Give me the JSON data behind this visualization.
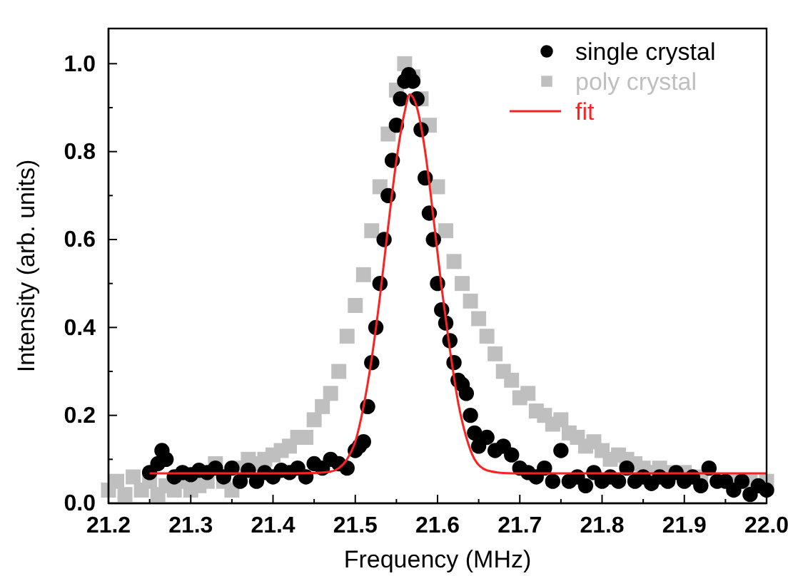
{
  "chart_data": {
    "type": "scatter",
    "xlabel": "Frequency (MHz)",
    "ylabel": "Intensity (arb. units)",
    "xlim": [
      21.2,
      22.0
    ],
    "ylim": [
      0,
      1.08
    ],
    "xticks": [
      21.2,
      {
        "value": 21.25,
        "label": null
      },
      21.3,
      {
        "value": 21.35,
        "label": null
      },
      21.4,
      {
        "value": 21.45,
        "label": null
      },
      21.5,
      {
        "value": 21.55,
        "label": null
      },
      21.6,
      {
        "value": 21.65,
        "label": null
      },
      21.7,
      {
        "value": 21.75,
        "label": null
      },
      21.8,
      {
        "value": 21.85,
        "label": null
      },
      21.9,
      {
        "value": 21.95,
        "label": null
      },
      {
        "value": 22,
        "label": "22.0"
      }
    ],
    "yticks": [
      {
        "value": 0,
        "label": "0.0"
      },
      {
        "value": 0.1,
        "label": null
      },
      0.2,
      {
        "value": 0.3,
        "label": null
      },
      0.4,
      {
        "value": 0.5,
        "label": null
      },
      0.6,
      {
        "value": 0.7,
        "label": null
      },
      0.8,
      {
        "value": 0.9,
        "label": null
      },
      {
        "value": 1,
        "label": "1.0"
      }
    ],
    "legend": "top right",
    "grid": false,
    "series": [
      {
        "name": "poly crystal",
        "marker": "square",
        "color": "#bfbfbf",
        "x": [
          21.2,
          21.21,
          21.22,
          21.23,
          21.24,
          21.25,
          21.26,
          21.27,
          21.28,
          21.29,
          21.3,
          21.31,
          21.32,
          21.33,
          21.34,
          21.35,
          21.36,
          21.37,
          21.38,
          21.39,
          21.4,
          21.41,
          21.42,
          21.43,
          21.44,
          21.45,
          21.46,
          21.47,
          21.48,
          21.49,
          21.5,
          21.51,
          21.52,
          21.53,
          21.54,
          21.55,
          21.56,
          21.57,
          21.58,
          21.59,
          21.6,
          21.61,
          21.62,
          21.63,
          21.64,
          21.65,
          21.66,
          21.67,
          21.68,
          21.69,
          21.7,
          21.71,
          21.72,
          21.73,
          21.74,
          21.75,
          21.76,
          21.77,
          21.78,
          21.79,
          21.8,
          21.81,
          21.82,
          21.83,
          21.84,
          21.85,
          21.86,
          21.87,
          21.88,
          21.9,
          21.92,
          21.94,
          21.96,
          21.98,
          22.0
        ],
        "values": [
          0.03,
          0.05,
          0.02,
          0.06,
          0.03,
          0.05,
          0.02,
          0.04,
          0.03,
          0.05,
          0.03,
          0.04,
          0.05,
          0.09,
          0.05,
          0.03,
          0.08,
          0.1,
          0.09,
          0.1,
          0.11,
          0.12,
          0.13,
          0.15,
          0.15,
          0.19,
          0.22,
          0.25,
          0.3,
          0.38,
          0.45,
          0.52,
          0.62,
          0.72,
          0.84,
          0.94,
          1.0,
          0.97,
          0.92,
          0.86,
          0.72,
          0.62,
          0.55,
          0.5,
          0.46,
          0.42,
          0.38,
          0.34,
          0.3,
          0.28,
          0.24,
          0.25,
          0.21,
          0.2,
          0.18,
          0.19,
          0.16,
          0.15,
          0.13,
          0.14,
          0.12,
          0.1,
          0.11,
          0.1,
          0.09,
          0.08,
          0.07,
          0.08,
          0.07,
          0.07,
          0.06,
          null,
          0.05,
          0.05,
          0.05
        ]
      },
      {
        "name": "single crystal",
        "marker": "circle",
        "color": "#000000",
        "x": [
          21.25,
          21.26,
          21.265,
          21.27,
          21.28,
          21.29,
          21.3,
          21.31,
          21.32,
          21.33,
          21.34,
          21.35,
          21.36,
          21.37,
          21.38,
          21.39,
          21.4,
          21.41,
          21.42,
          21.43,
          21.44,
          21.45,
          21.46,
          21.47,
          21.48,
          21.49,
          21.5,
          21.505,
          21.51,
          21.515,
          21.52,
          21.525,
          21.53,
          21.535,
          21.54,
          21.545,
          21.55,
          21.555,
          21.56,
          21.565,
          21.57,
          21.575,
          21.58,
          21.585,
          21.59,
          21.595,
          21.6,
          21.605,
          21.61,
          21.615,
          21.62,
          21.625,
          21.63,
          21.635,
          21.64,
          21.645,
          21.65,
          21.66,
          21.67,
          21.68,
          21.69,
          21.7,
          21.71,
          21.72,
          21.73,
          21.74,
          21.75,
          21.76,
          21.77,
          21.78,
          21.79,
          21.8,
          21.81,
          21.82,
          21.83,
          21.84,
          21.85,
          21.86,
          21.87,
          21.88,
          21.89,
          21.9,
          21.91,
          21.92,
          21.93,
          21.94,
          21.95,
          21.96,
          21.97,
          21.98,
          21.99,
          22.0
        ],
        "values": [
          0.07,
          0.09,
          0.12,
          0.1,
          0.06,
          0.07,
          0.065,
          0.075,
          0.07,
          0.08,
          0.06,
          0.08,
          0.05,
          0.075,
          0.05,
          0.07,
          0.06,
          0.075,
          0.07,
          0.08,
          0.06,
          0.09,
          0.08,
          0.1,
          0.09,
          0.08,
          0.12,
          0.13,
          0.14,
          0.22,
          0.32,
          0.4,
          0.5,
          0.6,
          0.7,
          0.78,
          0.86,
          0.92,
          0.96,
          0.975,
          0.96,
          0.92,
          0.85,
          0.74,
          0.66,
          0.6,
          0.5,
          0.44,
          0.41,
          0.37,
          0.32,
          0.28,
          0.27,
          0.25,
          0.2,
          0.16,
          0.13,
          0.15,
          0.12,
          0.13,
          0.11,
          0.08,
          0.07,
          0.06,
          0.08,
          0.05,
          0.12,
          0.05,
          0.06,
          0.04,
          0.07,
          0.05,
          0.06,
          0.05,
          0.08,
          0.05,
          0.06,
          0.045,
          0.06,
          0.05,
          0.07,
          0.05,
          0.06,
          0.04,
          0.08,
          0.05,
          0.05,
          0.03,
          0.05,
          0.02,
          0.04,
          0.03
        ]
      },
      {
        "name": "fit",
        "type": "line",
        "line_style": "solid",
        "color": "#ff2020",
        "x": [
          21.25,
          21.3,
          21.35,
          21.4,
          21.45,
          21.47,
          21.48,
          21.49,
          21.5,
          21.51,
          21.52,
          21.53,
          21.54,
          21.55,
          21.56,
          21.566,
          21.575,
          21.585,
          21.595,
          21.605,
          21.615,
          21.625,
          21.635,
          21.645,
          21.66,
          21.68,
          21.7,
          21.75,
          21.8,
          21.9,
          22.0
        ],
        "values": [
          0.068,
          0.068,
          0.068,
          0.068,
          0.069,
          0.072,
          0.08,
          0.1,
          0.14,
          0.22,
          0.33,
          0.47,
          0.63,
          0.78,
          0.89,
          0.93,
          0.9,
          0.8,
          0.65,
          0.49,
          0.35,
          0.23,
          0.15,
          0.1,
          0.075,
          0.069,
          0.068,
          0.068,
          0.068,
          0.068,
          0.068
        ]
      }
    ]
  }
}
